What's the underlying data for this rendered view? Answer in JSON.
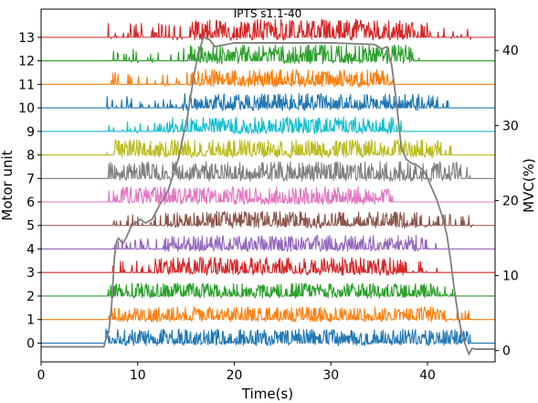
{
  "chart_data": {
    "type": "line",
    "title": "IPTS s1.1-40",
    "xlabel": "Time(s)",
    "ylabel_left": "Motor unit",
    "ylabel_right": "MVC(%)",
    "xlim": [
      0,
      47
    ],
    "ylim_left": [
      -0.8,
      14.2
    ],
    "ylim_right": [
      -1.5,
      45.5
    ],
    "x_ticks": [
      0,
      10,
      20,
      30,
      40
    ],
    "x_tick_labels": [
      "0",
      "10",
      "20",
      "30",
      "40"
    ],
    "y_left_ticks": [
      0,
      1,
      2,
      3,
      4,
      5,
      6,
      7,
      8,
      9,
      10,
      11,
      12,
      13
    ],
    "y_left_tick_labels": [
      "0",
      "1",
      "2",
      "3",
      "4",
      "5",
      "6",
      "7",
      "8",
      "9",
      "10",
      "11",
      "12",
      "13"
    ],
    "y_right_ticks": [
      0,
      10,
      20,
      30,
      40
    ],
    "y_right_tick_labels": [
      "0",
      "10",
      "20",
      "30",
      "40"
    ],
    "grid": false,
    "series": [
      {
        "unit": 0,
        "color": "#1f77b4",
        "active": [
          6.6,
          44.5
        ],
        "dense": [
          6.6,
          44.5
        ],
        "amp": 0.35
      },
      {
        "unit": 1,
        "color": "#ff7f0e",
        "active": [
          6.8,
          44.8
        ],
        "dense": [
          7.0,
          42.0
        ],
        "amp": 0.32
      },
      {
        "unit": 2,
        "color": "#2ca02c",
        "active": [
          6.6,
          43.5
        ],
        "dense": [
          7.0,
          41.0
        ],
        "amp": 0.32
      },
      {
        "unit": 3,
        "color": "#d62728",
        "active": [
          6.8,
          41.5
        ],
        "dense": [
          11.8,
          37.5
        ],
        "amp": 0.38
      },
      {
        "unit": 4,
        "color": "#9467bd",
        "active": [
          6.8,
          41.0
        ],
        "dense": [
          12.8,
          39.0
        ],
        "amp": 0.34
      },
      {
        "unit": 5,
        "color": "#8c564b",
        "active": [
          6.8,
          45.0
        ],
        "dense": [
          12.8,
          39.0
        ],
        "amp": 0.35
      },
      {
        "unit": 6,
        "color": "#e377c2",
        "active": [
          7.0,
          36.5
        ],
        "dense": [
          8.0,
          36.0
        ],
        "amp": 0.38
      },
      {
        "unit": 7,
        "color": "#7f7f7f",
        "active": [
          6.8,
          45.0
        ],
        "dense": [
          7.0,
          43.5
        ],
        "amp": 0.42
      },
      {
        "unit": 8,
        "color": "#bcbd22",
        "active": [
          6.8,
          42.5
        ],
        "dense": [
          7.5,
          41.5
        ],
        "amp": 0.38
      },
      {
        "unit": 9,
        "color": "#17becf",
        "active": [
          7.0,
          37.5
        ],
        "dense": [
          13.0,
          36.5
        ],
        "amp": 0.36
      },
      {
        "unit": 10,
        "color": "#1f77b4",
        "active": [
          6.8,
          43.0
        ],
        "dense": [
          14.5,
          41.0
        ],
        "amp": 0.36
      },
      {
        "unit": 11,
        "color": "#ff7f0e",
        "active": [
          6.8,
          36.5
        ],
        "dense": [
          15.5,
          36.0
        ],
        "amp": 0.38
      },
      {
        "unit": 12,
        "color": "#2ca02c",
        "active": [
          6.8,
          39.5
        ],
        "dense": [
          15.2,
          38.5
        ],
        "amp": 0.4
      },
      {
        "unit": 13,
        "color": "#d62728",
        "active": [
          6.8,
          45.0
        ],
        "dense": [
          15.5,
          38.5
        ],
        "amp": 0.45
      }
    ],
    "force": {
      "name": "",
      "color": "#7f7f7f",
      "x": [
        0,
        6.5,
        6.7,
        7.0,
        7.3,
        7.6,
        7.8,
        8.0,
        8.3,
        8.5,
        8.8,
        9.3,
        9.8,
        10.3,
        10.8,
        11.5,
        12.3,
        12.8,
        13.2,
        13.7,
        14.2,
        14.7,
        15.2,
        15.5,
        15.8,
        16.1,
        16.4,
        16.8,
        17.4,
        18,
        20,
        25,
        30,
        34.5,
        35.3,
        35.8,
        36.3,
        36.8,
        37.3,
        37.8,
        38.3,
        38.8,
        39.1,
        39.6,
        40,
        40.5,
        41,
        41.5,
        42,
        42.4,
        42.8,
        43.2,
        43.6,
        44.0,
        44.3,
        44.6,
        45.0,
        47
      ],
      "y": [
        0.5,
        0.5,
        1.5,
        2.5,
        6,
        12.5,
        14.5,
        15,
        14.5,
        14.3,
        15,
        16.5,
        17,
        17.5,
        17,
        17.5,
        19.5,
        20.5,
        21.5,
        23.5,
        25.5,
        28.5,
        31.5,
        34,
        36.5,
        38.5,
        40,
        41.8,
        41.5,
        40.5,
        41,
        41,
        41,
        40.8,
        40.2,
        40.5,
        38,
        33,
        27,
        25.5,
        25,
        24.8,
        24.5,
        24,
        23,
        21.5,
        20,
        18,
        15.5,
        12,
        8,
        4.5,
        2,
        0.5,
        -0.5,
        0.3,
        0.2,
        0.2
      ]
    }
  }
}
